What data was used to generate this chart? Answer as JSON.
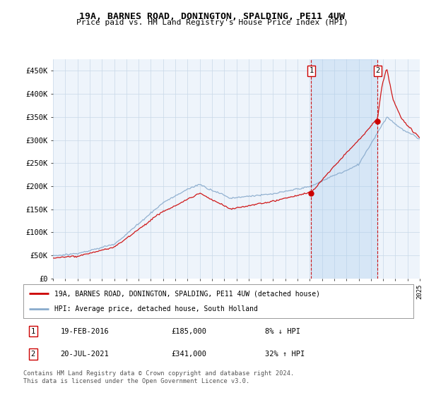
{
  "title1": "19A, BARNES ROAD, DONINGTON, SPALDING, PE11 4UW",
  "title2": "Price paid vs. HM Land Registry's House Price Index (HPI)",
  "ylabel_ticks": [
    "£0",
    "£50K",
    "£100K",
    "£150K",
    "£200K",
    "£250K",
    "£300K",
    "£350K",
    "£400K",
    "£450K"
  ],
  "ytick_values": [
    0,
    50000,
    100000,
    150000,
    200000,
    250000,
    300000,
    350000,
    400000,
    450000
  ],
  "ylim": [
    0,
    475000
  ],
  "year_start": 1995,
  "year_end": 2025,
  "marker1": {
    "date": 2016.12,
    "value": 185000,
    "label": "1",
    "date_str": "19-FEB-2016",
    "price": "£185,000",
    "hpi": "8% ↓ HPI"
  },
  "marker2": {
    "date": 2021.55,
    "value": 341000,
    "label": "2",
    "date_str": "20-JUL-2021",
    "price": "£341,000",
    "hpi": "32% ↑ HPI"
  },
  "legend_label_red": "19A, BARNES ROAD, DONINGTON, SPALDING, PE11 4UW (detached house)",
  "legend_label_blue": "HPI: Average price, detached house, South Holland",
  "footer": "Contains HM Land Registry data © Crown copyright and database right 2024.\nThis data is licensed under the Open Government Licence v3.0.",
  "red_color": "#cc0000",
  "blue_color": "#88aacc",
  "shade_color": "#ddeeff",
  "dashed_color": "#cc0000",
  "background_color": "#eef4fb",
  "plot_bg_color": "#ffffff",
  "grid_color": "#c8d8e8"
}
